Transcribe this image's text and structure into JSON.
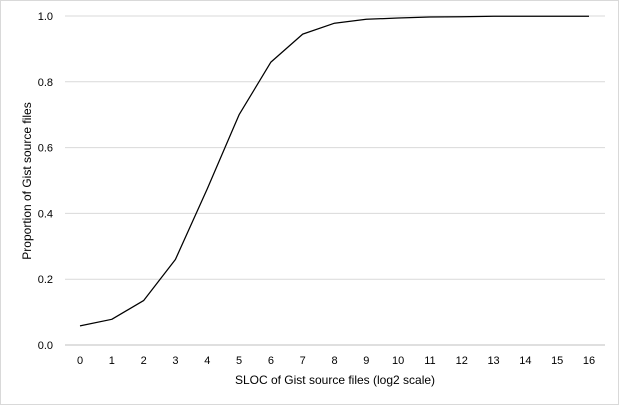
{
  "chart_data": {
    "type": "line",
    "title": "",
    "xlabel": "SLOC of Gist source files (log2 scale)",
    "ylabel": "Proportion of Gist source files",
    "x": [
      0,
      1,
      2,
      3,
      4,
      5,
      6,
      7,
      8,
      9,
      10,
      11,
      12,
      13,
      14,
      15,
      16
    ],
    "xticks": [
      "0",
      "1",
      "2",
      "3",
      "4",
      "5",
      "6",
      "7",
      "8",
      "9",
      "10",
      "11",
      "12",
      "13",
      "14",
      "15",
      "16"
    ],
    "yticks": [
      "0.0",
      "0.2",
      "0.4",
      "0.6",
      "0.8",
      "1.0"
    ],
    "ylim": [
      0,
      1
    ],
    "grid": "horizontal",
    "legend": "none",
    "series": [
      {
        "values": [
          0.058,
          0.078,
          0.135,
          0.26,
          0.475,
          0.7,
          0.86,
          0.945,
          0.978,
          0.99,
          0.994,
          0.997,
          0.998,
          0.999,
          0.999,
          0.999,
          0.999
        ],
        "color": "#000000"
      }
    ],
    "colors": {
      "grid": "#d9d9d9",
      "baseline": "#bfbfbf",
      "line": "#000000",
      "border": "#d9d9d9"
    }
  }
}
